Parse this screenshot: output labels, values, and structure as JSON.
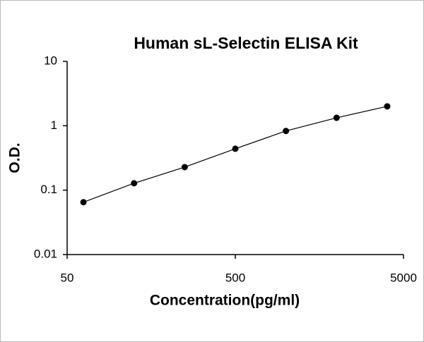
{
  "chart_data": {
    "type": "scatter",
    "title": "Human sL-Selectin ELISA Kit",
    "x_label": "Concentration(pg/ml)",
    "y_label": "O.D.",
    "x": [
      62.5,
      125,
      250,
      500,
      1000,
      2000,
      4000
    ],
    "values": [
      0.065,
      0.128,
      0.228,
      0.44,
      0.83,
      1.33,
      2.0
    ],
    "color": "#000000",
    "x_log": true,
    "y_log": true,
    "xlim": [
      50,
      5000
    ],
    "xticks": [
      50,
      500,
      5000
    ],
    "ylim": [
      0.01,
      10
    ],
    "yticks": [
      0.01,
      0.1,
      1,
      10
    ]
  }
}
